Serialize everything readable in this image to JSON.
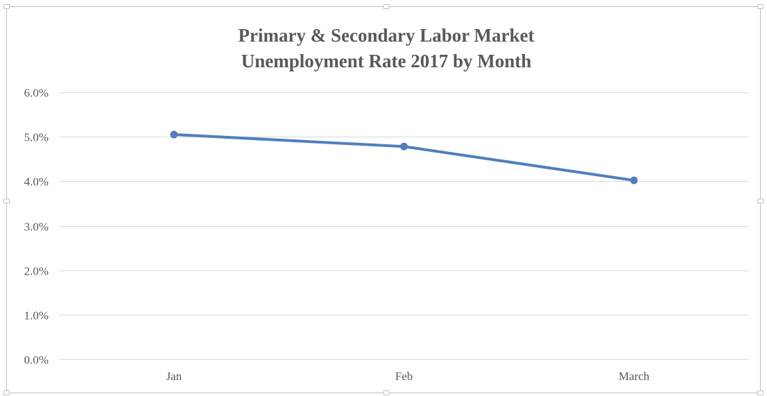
{
  "chart_data": {
    "type": "line",
    "title": "Primary & Secondary Labor Market Unemployment Rate 2017 by Month",
    "title_lines": [
      "Primary & Secondary Labor Market",
      "Unemployment Rate 2017 by Month"
    ],
    "categories": [
      "Jan",
      "Feb",
      "March"
    ],
    "series": [
      {
        "values": [
          5.05,
          4.78,
          4.02
        ],
        "color": "#4f7fbf"
      }
    ],
    "y_ticks": [
      "0.0%",
      "1.0%",
      "2.0%",
      "3.0%",
      "4.0%",
      "5.0%",
      "6.0%"
    ],
    "ylim": [
      0,
      6
    ],
    "y_unit": "percent",
    "xlabel": "",
    "ylabel": "",
    "grid": true,
    "legend": "none",
    "colors": {
      "gridline": "#d9d9d9",
      "text": "#595959",
      "frame": "#bfbfbf"
    }
  }
}
